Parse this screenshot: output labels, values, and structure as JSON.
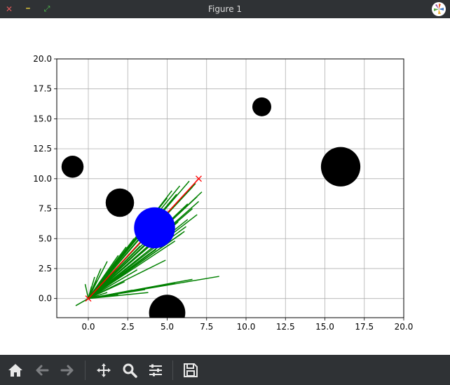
{
  "window": {
    "title": "Figure 1",
    "close_glyph": "✕",
    "minimize_glyph": "━",
    "maximize_glyph": "⤢"
  },
  "toolbar": {
    "buttons": [
      {
        "name": "home-icon"
      },
      {
        "name": "back-arrow-icon"
      },
      {
        "name": "forward-arrow-icon"
      },
      {
        "name": "pan-move-icon"
      },
      {
        "name": "zoom-magnifier-icon"
      },
      {
        "name": "configure-subplots-icon"
      },
      {
        "name": "save-disk-icon"
      }
    ]
  },
  "colors": {
    "titlebar": "#2f3235",
    "toolbar": "#2f3235",
    "obstacle": "#000000",
    "robot": "#0000ff",
    "tree": "#008000",
    "path": "#ff0000",
    "grid": "#b0b0b0"
  },
  "chart_data": {
    "type": "scatter",
    "title": "",
    "xlabel": "",
    "ylabel": "",
    "xlim": [
      -2,
      20
    ],
    "ylim": [
      -1.6,
      20
    ],
    "grid": true,
    "x_ticks": [
      "0.0",
      "2.5",
      "5.0",
      "7.5",
      "10.0",
      "12.5",
      "15.0",
      "17.5",
      "20.0"
    ],
    "y_ticks": [
      "0.0",
      "2.5",
      "5.0",
      "7.5",
      "10.0",
      "12.5",
      "15.0",
      "17.5",
      "20.0"
    ],
    "obstacles": [
      {
        "x": -1,
        "y": 11,
        "r": 0.7
      },
      {
        "x": 2,
        "y": 8,
        "r": 0.9
      },
      {
        "x": 11,
        "y": 16,
        "r": 0.6
      },
      {
        "x": 16,
        "y": 11,
        "r": 1.25
      },
      {
        "x": 5,
        "y": -1.2,
        "r": 1.15
      }
    ],
    "robot": {
      "x": 4.2,
      "y": 5.9,
      "r": 1.3
    },
    "start": {
      "x": 0,
      "y": 0
    },
    "goal": {
      "x": 7,
      "y": 10
    },
    "path": [
      [
        0,
        0
      ],
      [
        7,
        10
      ]
    ],
    "tree_edges": [
      [
        [
          0,
          0
        ],
        [
          6.4,
          9.8
        ]
      ],
      [
        [
          0,
          0
        ],
        [
          6.6,
          9.3
        ]
      ],
      [
        [
          0,
          0
        ],
        [
          7.2,
          8.9
        ]
      ],
      [
        [
          0,
          0
        ],
        [
          6.9,
          8.5
        ]
      ],
      [
        [
          0,
          0
        ],
        [
          7.0,
          8.1
        ]
      ],
      [
        [
          0,
          0
        ],
        [
          6.6,
          7.5
        ]
      ],
      [
        [
          0,
          0
        ],
        [
          6.9,
          7.0
        ]
      ],
      [
        [
          0,
          0
        ],
        [
          6.3,
          6.6
        ]
      ],
      [
        [
          0,
          0
        ],
        [
          6.2,
          6.0
        ]
      ],
      [
        [
          0,
          0
        ],
        [
          5.9,
          5.4
        ]
      ],
      [
        [
          0,
          0
        ],
        [
          5.5,
          4.8
        ]
      ],
      [
        [
          0,
          0
        ],
        [
          5.8,
          9.4
        ]
      ],
      [
        [
          0,
          0
        ],
        [
          5.3,
          9.0
        ]
      ],
      [
        [
          0,
          0
        ],
        [
          5.0,
          8.4
        ]
      ],
      [
        [
          0,
          0
        ],
        [
          4.6,
          7.8
        ]
      ],
      [
        [
          0,
          0
        ],
        [
          4.2,
          7.0
        ]
      ],
      [
        [
          0,
          0
        ],
        [
          3.8,
          6.4
        ]
      ],
      [
        [
          0,
          0
        ],
        [
          3.4,
          5.6
        ]
      ],
      [
        [
          0,
          0
        ],
        [
          2.9,
          5.0
        ]
      ],
      [
        [
          0,
          0
        ],
        [
          2.4,
          4.3
        ]
      ],
      [
        [
          0,
          0
        ],
        [
          1.9,
          3.6
        ]
      ],
      [
        [
          0,
          0
        ],
        [
          1.2,
          3.1
        ]
      ],
      [
        [
          0,
          0
        ],
        [
          0.8,
          2.5
        ]
      ],
      [
        [
          0,
          0
        ],
        [
          0.4,
          1.8
        ]
      ],
      [
        [
          0,
          0
        ],
        [
          0.2,
          1.0
        ]
      ],
      [
        [
          0,
          0
        ],
        [
          -0.2,
          1.2
        ]
      ],
      [
        [
          0,
          0
        ],
        [
          -0.8,
          -0.6
        ]
      ],
      [
        [
          0,
          0
        ],
        [
          0.5,
          1.5
        ]
      ],
      [
        [
          0,
          0
        ],
        [
          8.3,
          1.85
        ]
      ],
      [
        [
          0,
          0
        ],
        [
          6.6,
          1.6
        ]
      ],
      [
        [
          0,
          0
        ],
        [
          5.5,
          1.3
        ]
      ],
      [
        [
          0,
          0
        ],
        [
          4.2,
          1.0
        ]
      ],
      [
        [
          0,
          0
        ],
        [
          3.6,
          0.75
        ]
      ],
      [
        [
          0,
          0
        ],
        [
          2.8,
          0.7
        ]
      ],
      [
        [
          0,
          0
        ],
        [
          3.8,
          0.5
        ]
      ],
      [
        [
          0,
          0
        ],
        [
          1.9,
          0.3
        ]
      ],
      [
        [
          0,
          0
        ],
        [
          1.2,
          0.5
        ]
      ],
      [
        [
          0,
          0
        ],
        [
          2.3,
          1.4
        ]
      ],
      [
        [
          0,
          0
        ],
        [
          3.1,
          2.4
        ]
      ],
      [
        [
          0,
          0
        ],
        [
          3.6,
          3.3
        ]
      ],
      [
        [
          0,
          0
        ],
        [
          4.3,
          4.1
        ]
      ],
      [
        [
          0,
          0
        ],
        [
          4.9,
          3.2
        ]
      ],
      [
        [
          0,
          0
        ],
        [
          5.7,
          6.4
        ]
      ],
      [
        [
          0,
          0
        ],
        [
          6.3,
          7.9
        ]
      ],
      [
        [
          0,
          0
        ],
        [
          5.6,
          8.7
        ]
      ],
      [
        [
          0,
          0
        ],
        [
          4.8,
          6.3
        ]
      ],
      [
        [
          0,
          0
        ],
        [
          3.3,
          4.4
        ]
      ],
      [
        [
          0,
          0
        ],
        [
          2.0,
          2.6
        ]
      ],
      [
        [
          0,
          0
        ],
        [
          1.5,
          1.7
        ]
      ],
      [
        [
          0,
          0
        ],
        [
          0.9,
          1.2
        ]
      ],
      [
        [
          0,
          0
        ],
        [
          6.1,
          5.6
        ]
      ],
      [
        [
          0,
          0
        ],
        [
          6.8,
          9.6
        ]
      ]
    ]
  }
}
